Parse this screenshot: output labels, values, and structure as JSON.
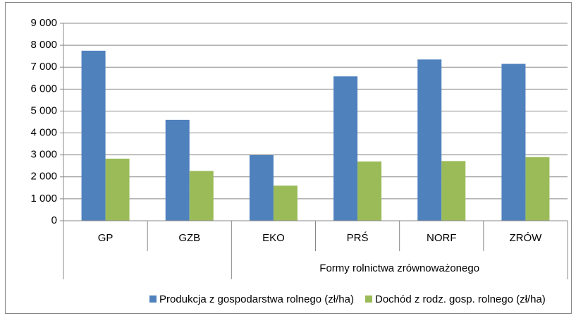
{
  "chart_data": {
    "type": "bar",
    "categories": [
      "GP",
      "GZB",
      "EKO",
      "PRŚ",
      "NORF",
      "ZRÓW"
    ],
    "category_groups": [
      {
        "name": "Formy rolnictwa zrównoważonego",
        "members": [
          2,
          3,
          4,
          5
        ]
      }
    ],
    "series": [
      {
        "name": "Produkcja z gospodarstwa rolnego (zł/ha)",
        "color": "#4f81bd",
        "values": [
          7750,
          4600,
          2990,
          6580,
          7350,
          7150
        ]
      },
      {
        "name": "Dochód z rodz. gosp. rolnego (zł/ha)",
        "color": "#9bbb59",
        "values": [
          2830,
          2270,
          1600,
          2700,
          2720,
          2900
        ]
      }
    ],
    "ylim": [
      0,
      9000
    ],
    "yticks": [
      0,
      {
        "value": 1000,
        "label": "1 000"
      },
      {
        "value": 2000,
        "label": "2 000"
      },
      {
        "value": 3000,
        "label": "3 000"
      },
      {
        "value": 4000,
        "label": "4 000"
      },
      {
        "value": 5000,
        "label": "5 000"
      },
      {
        "value": 6000,
        "label": "6 000"
      },
      {
        "value": 7000,
        "label": "7 000"
      },
      {
        "value": 8000,
        "label": "8 000"
      },
      {
        "value": 9000,
        "label": "9 000"
      }
    ],
    "grid": true,
    "legend": "bottom"
  }
}
